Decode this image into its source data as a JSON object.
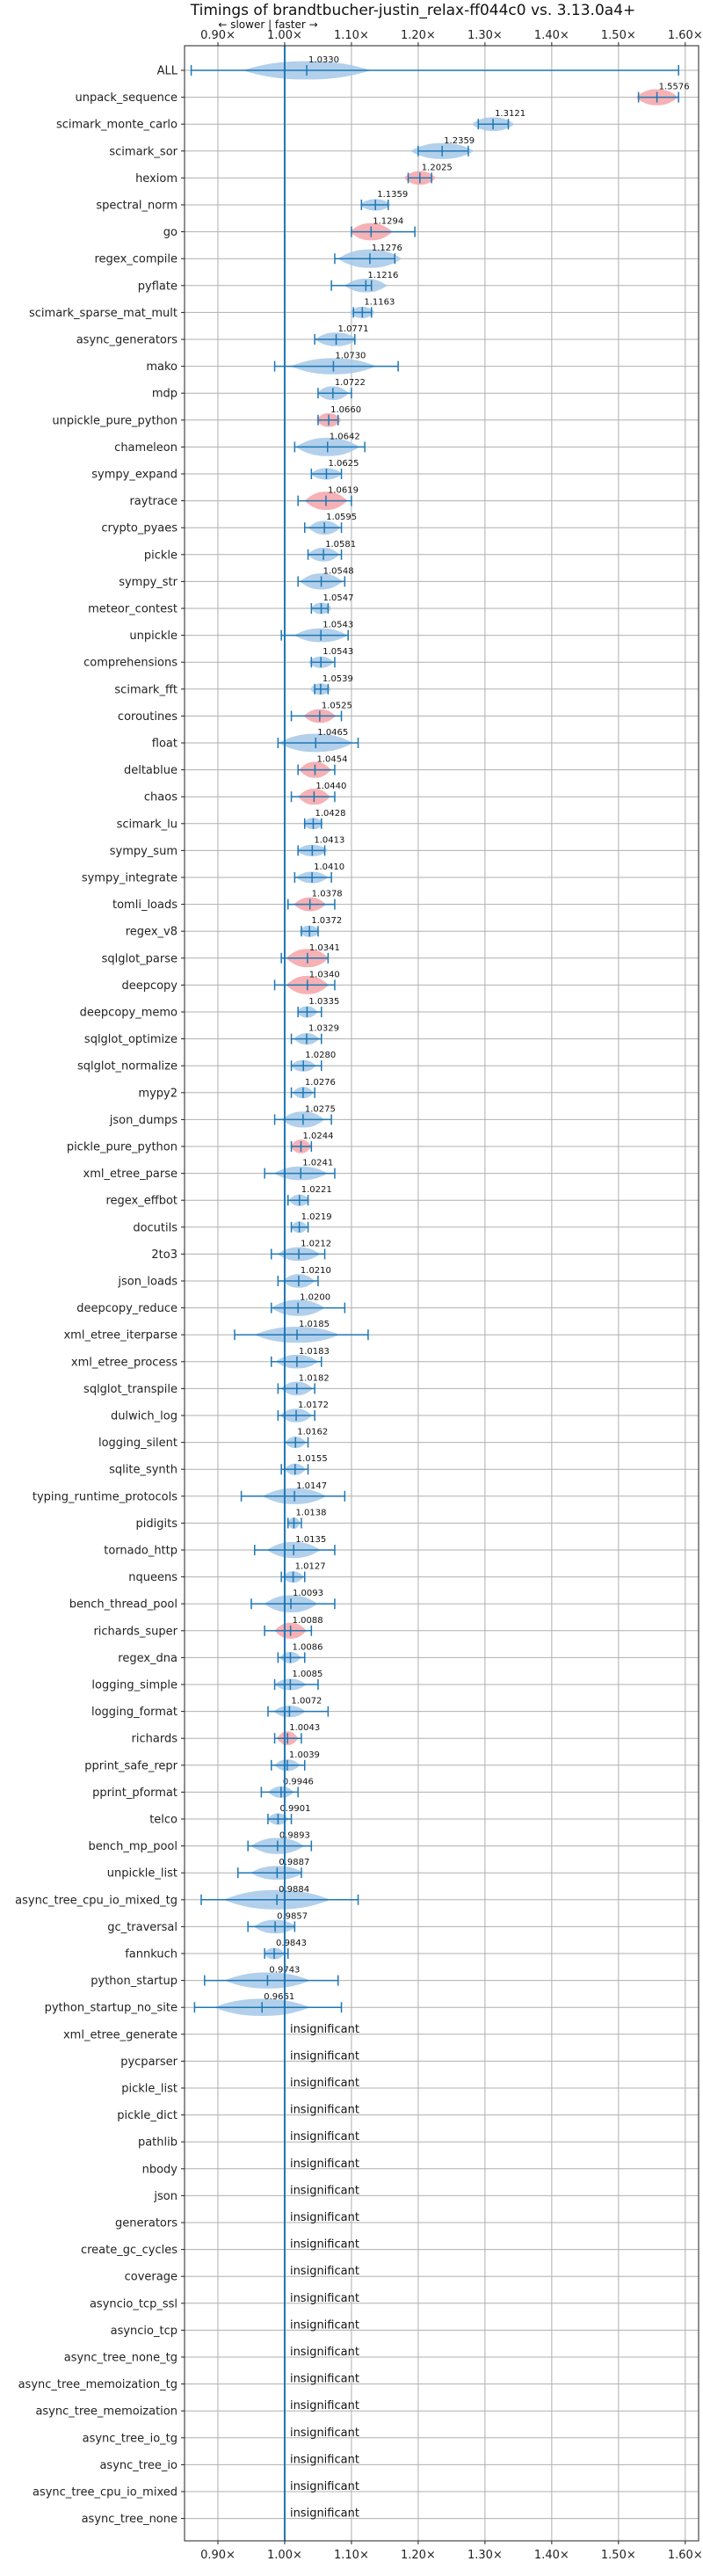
{
  "chart_data": {
    "type": "violin",
    "title": "Timings of brandtbucher-justin_relax-ff044c0 vs. 3.13.0a4+",
    "subtitle": "← slower | faster →",
    "xlim": [
      0.85,
      1.62
    ],
    "xticks": [
      "0.90×",
      "1.00×",
      "1.10×",
      "1.20×",
      "1.30×",
      "1.40×",
      "1.50×",
      "1.60×"
    ],
    "xtick_values": [
      0.9,
      1.0,
      1.1,
      1.2,
      1.3,
      1.4,
      1.5,
      1.6
    ],
    "grid": true,
    "baseline": 1.0,
    "colors": {
      "faster": "#a4c8e8",
      "slower": "#f4a3a8",
      "whisker": "#1f77b4"
    },
    "rows": [
      {
        "name": "ALL",
        "value": 1.033,
        "label": "1.0330",
        "lo": 0.86,
        "hi": 1.59,
        "spread": 0.06,
        "width": 0.8,
        "slower": false
      },
      {
        "name": "unpack_sequence",
        "value": 1.5576,
        "label": "1.5576",
        "lo": 1.53,
        "hi": 1.59,
        "spread": 0.02,
        "width": 0.7,
        "slower": true
      },
      {
        "name": "scimark_monte_carlo",
        "value": 1.3121,
        "label": "1.3121",
        "lo": 1.29,
        "hi": 1.335,
        "spread": 0.02,
        "width": 0.6,
        "slower": false
      },
      {
        "name": "scimark_sor",
        "value": 1.2359,
        "label": "1.2359",
        "lo": 1.2,
        "hi": 1.275,
        "spread": 0.03,
        "width": 0.7,
        "slower": false
      },
      {
        "name": "hexiom",
        "value": 1.2025,
        "label": "1.2025",
        "lo": 1.185,
        "hi": 1.22,
        "spread": 0.015,
        "width": 0.6,
        "slower": true
      },
      {
        "name": "spectral_norm",
        "value": 1.1359,
        "label": "1.1359",
        "lo": 1.115,
        "hi": 1.155,
        "spread": 0.015,
        "width": 0.5,
        "slower": false
      },
      {
        "name": "go",
        "value": 1.1294,
        "label": "1.1294",
        "lo": 1.1,
        "hi": 1.195,
        "spread": 0.02,
        "width": 0.75,
        "slower": true
      },
      {
        "name": "regex_compile",
        "value": 1.1276,
        "label": "1.1276",
        "lo": 1.075,
        "hi": 1.165,
        "spread": 0.03,
        "width": 0.8,
        "slower": false
      },
      {
        "name": "pyflate",
        "value": 1.1216,
        "label": "1.1216",
        "lo": 1.07,
        "hi": 1.13,
        "spread": 0.02,
        "width": 0.6,
        "slower": false
      },
      {
        "name": "scimark_sparse_mat_mult",
        "value": 1.1163,
        "label": "1.1163",
        "lo": 1.103,
        "hi": 1.13,
        "spread": 0.012,
        "width": 0.5,
        "slower": false
      },
      {
        "name": "async_generators",
        "value": 1.0771,
        "label": "1.0771",
        "lo": 1.045,
        "hi": 1.105,
        "spread": 0.02,
        "width": 0.6,
        "slower": false
      },
      {
        "name": "mako",
        "value": 1.073,
        "label": "1.0730",
        "lo": 0.985,
        "hi": 1.17,
        "spread": 0.04,
        "width": 0.7,
        "slower": false
      },
      {
        "name": "mdp",
        "value": 1.0722,
        "label": "1.0722",
        "lo": 1.05,
        "hi": 1.1,
        "spread": 0.015,
        "width": 0.6,
        "slower": false
      },
      {
        "name": "unpickle_pure_python",
        "value": 1.066,
        "label": "1.0660",
        "lo": 1.05,
        "hi": 1.08,
        "spread": 0.012,
        "width": 0.6,
        "slower": true
      },
      {
        "name": "chameleon",
        "value": 1.0642,
        "label": "1.0642",
        "lo": 1.015,
        "hi": 1.12,
        "spread": 0.03,
        "width": 0.8,
        "slower": false
      },
      {
        "name": "sympy_expand",
        "value": 1.0625,
        "label": "1.0625",
        "lo": 1.04,
        "hi": 1.085,
        "spread": 0.015,
        "width": 0.5,
        "slower": false
      },
      {
        "name": "raytrace",
        "value": 1.0619,
        "label": "1.0619",
        "lo": 1.02,
        "hi": 1.1,
        "spread": 0.02,
        "width": 0.8,
        "slower": true
      },
      {
        "name": "crypto_pyaes",
        "value": 1.0595,
        "label": "1.0595",
        "lo": 1.03,
        "hi": 1.085,
        "spread": 0.015,
        "width": 0.6,
        "slower": false
      },
      {
        "name": "pickle",
        "value": 1.0581,
        "label": "1.0581",
        "lo": 1.035,
        "hi": 1.085,
        "spread": 0.015,
        "width": 0.6,
        "slower": false
      },
      {
        "name": "sympy_str",
        "value": 1.0548,
        "label": "1.0548",
        "lo": 1.02,
        "hi": 1.09,
        "spread": 0.02,
        "width": 0.7,
        "slower": false
      },
      {
        "name": "meteor_contest",
        "value": 1.0547,
        "label": "1.0547",
        "lo": 1.04,
        "hi": 1.065,
        "spread": 0.01,
        "width": 0.5,
        "slower": false
      },
      {
        "name": "unpickle",
        "value": 1.0543,
        "label": "1.0543",
        "lo": 0.995,
        "hi": 1.095,
        "spread": 0.025,
        "width": 0.6,
        "slower": false
      },
      {
        "name": "comprehensions",
        "value": 1.0543,
        "label": "1.0543",
        "lo": 1.04,
        "hi": 1.075,
        "spread": 0.012,
        "width": 0.5,
        "slower": false
      },
      {
        "name": "scimark_fft",
        "value": 1.0539,
        "label": "1.0539",
        "lo": 1.045,
        "hi": 1.065,
        "spread": 0.01,
        "width": 0.5,
        "slower": false
      },
      {
        "name": "coroutines",
        "value": 1.0525,
        "label": "1.0525",
        "lo": 1.01,
        "hi": 1.085,
        "spread": 0.015,
        "width": 0.6,
        "slower": true
      },
      {
        "name": "float",
        "value": 1.0465,
        "label": "1.0465",
        "lo": 0.99,
        "hi": 1.11,
        "spread": 0.035,
        "width": 0.8,
        "slower": false
      },
      {
        "name": "deltablue",
        "value": 1.0454,
        "label": "1.0454",
        "lo": 1.02,
        "hi": 1.075,
        "spread": 0.015,
        "width": 0.7,
        "slower": true
      },
      {
        "name": "chaos",
        "value": 1.044,
        "label": "1.0440",
        "lo": 1.01,
        "hi": 1.075,
        "spread": 0.015,
        "width": 0.7,
        "slower": true
      },
      {
        "name": "scimark_lu",
        "value": 1.0428,
        "label": "1.0428",
        "lo": 1.03,
        "hi": 1.055,
        "spread": 0.01,
        "width": 0.5,
        "slower": false
      },
      {
        "name": "sympy_sum",
        "value": 1.0413,
        "label": "1.0413",
        "lo": 1.02,
        "hi": 1.06,
        "spread": 0.015,
        "width": 0.5,
        "slower": false
      },
      {
        "name": "sympy_integrate",
        "value": 1.041,
        "label": "1.0410",
        "lo": 1.015,
        "hi": 1.07,
        "spread": 0.015,
        "width": 0.5,
        "slower": false
      },
      {
        "name": "tomli_loads",
        "value": 1.0378,
        "label": "1.0378",
        "lo": 1.005,
        "hi": 1.075,
        "spread": 0.015,
        "width": 0.6,
        "slower": true
      },
      {
        "name": "regex_v8",
        "value": 1.0372,
        "label": "1.0372",
        "lo": 1.025,
        "hi": 1.05,
        "spread": 0.01,
        "width": 0.5,
        "slower": false
      },
      {
        "name": "sqlglot_parse",
        "value": 1.0341,
        "label": "1.0341",
        "lo": 0.995,
        "hi": 1.065,
        "spread": 0.02,
        "width": 0.8,
        "slower": true
      },
      {
        "name": "deepcopy",
        "value": 1.034,
        "label": "1.0340",
        "lo": 0.985,
        "hi": 1.075,
        "spread": 0.02,
        "width": 0.8,
        "slower": true
      },
      {
        "name": "deepcopy_memo",
        "value": 1.0335,
        "label": "1.0335",
        "lo": 1.02,
        "hi": 1.055,
        "spread": 0.01,
        "width": 0.5,
        "slower": false
      },
      {
        "name": "sqlglot_optimize",
        "value": 1.0329,
        "label": "1.0329",
        "lo": 1.01,
        "hi": 1.055,
        "spread": 0.012,
        "width": 0.5,
        "slower": false
      },
      {
        "name": "sqlglot_normalize",
        "value": 1.028,
        "label": "1.0280",
        "lo": 1.01,
        "hi": 1.055,
        "spread": 0.012,
        "width": 0.5,
        "slower": false
      },
      {
        "name": "mypy2",
        "value": 1.0276,
        "label": "1.0276",
        "lo": 1.01,
        "hi": 1.045,
        "spread": 0.01,
        "width": 0.5,
        "slower": false
      },
      {
        "name": "json_dumps",
        "value": 1.0275,
        "label": "1.0275",
        "lo": 0.985,
        "hi": 1.07,
        "spread": 0.02,
        "width": 0.7,
        "slower": false
      },
      {
        "name": "pickle_pure_python",
        "value": 1.0244,
        "label": "1.0244",
        "lo": 1.01,
        "hi": 1.04,
        "spread": 0.01,
        "width": 0.6,
        "slower": true
      },
      {
        "name": "xml_etree_parse",
        "value": 1.0241,
        "label": "1.0241",
        "lo": 0.97,
        "hi": 1.075,
        "spread": 0.025,
        "width": 0.6,
        "slower": false
      },
      {
        "name": "regex_effbot",
        "value": 1.0221,
        "label": "1.0221",
        "lo": 1.005,
        "hi": 1.035,
        "spread": 0.01,
        "width": 0.5,
        "slower": false
      },
      {
        "name": "docutils",
        "value": 1.0219,
        "label": "1.0219",
        "lo": 1.01,
        "hi": 1.035,
        "spread": 0.008,
        "width": 0.5,
        "slower": false
      },
      {
        "name": "2to3",
        "value": 1.0212,
        "label": "1.0212",
        "lo": 0.98,
        "hi": 1.06,
        "spread": 0.02,
        "width": 0.6,
        "slower": false
      },
      {
        "name": "json_loads",
        "value": 1.021,
        "label": "1.0210",
        "lo": 0.99,
        "hi": 1.05,
        "spread": 0.015,
        "width": 0.6,
        "slower": false
      },
      {
        "name": "deepcopy_reduce",
        "value": 1.02,
        "label": "1.0200",
        "lo": 0.98,
        "hi": 1.09,
        "spread": 0.025,
        "width": 0.7,
        "slower": false
      },
      {
        "name": "xml_etree_iterparse",
        "value": 1.0185,
        "label": "1.0185",
        "lo": 0.925,
        "hi": 1.125,
        "spread": 0.04,
        "width": 0.7,
        "slower": false
      },
      {
        "name": "xml_etree_process",
        "value": 1.0183,
        "label": "1.0183",
        "lo": 0.98,
        "hi": 1.055,
        "spread": 0.02,
        "width": 0.6,
        "slower": false
      },
      {
        "name": "sqlglot_transpile",
        "value": 1.0182,
        "label": "1.0182",
        "lo": 0.99,
        "hi": 1.045,
        "spread": 0.015,
        "width": 0.6,
        "slower": false
      },
      {
        "name": "dulwich_log",
        "value": 1.0172,
        "label": "1.0172",
        "lo": 0.99,
        "hi": 1.045,
        "spread": 0.015,
        "width": 0.6,
        "slower": false
      },
      {
        "name": "logging_silent",
        "value": 1.0162,
        "label": "1.0162",
        "lo": 1.0,
        "hi": 1.035,
        "spread": 0.01,
        "width": 0.5,
        "slower": false
      },
      {
        "name": "sqlite_synth",
        "value": 1.0155,
        "label": "1.0155",
        "lo": 0.995,
        "hi": 1.035,
        "spread": 0.01,
        "width": 0.5,
        "slower": false
      },
      {
        "name": "typing_runtime_protocols",
        "value": 1.0147,
        "label": "1.0147",
        "lo": 0.935,
        "hi": 1.09,
        "spread": 0.03,
        "width": 0.7,
        "slower": false
      },
      {
        "name": "pidigits",
        "value": 1.0138,
        "label": "1.0138",
        "lo": 1.005,
        "hi": 1.025,
        "spread": 0.006,
        "width": 0.5,
        "slower": false
      },
      {
        "name": "tornado_http",
        "value": 1.0135,
        "label": "1.0135",
        "lo": 0.955,
        "hi": 1.075,
        "spread": 0.025,
        "width": 0.7,
        "slower": false
      },
      {
        "name": "nqueens",
        "value": 1.0127,
        "label": "1.0127",
        "lo": 0.995,
        "hi": 1.03,
        "spread": 0.01,
        "width": 0.5,
        "slower": false
      },
      {
        "name": "bench_thread_pool",
        "value": 1.0093,
        "label": "1.0093",
        "lo": 0.95,
        "hi": 1.075,
        "spread": 0.025,
        "width": 0.75,
        "slower": false
      },
      {
        "name": "richards_super",
        "value": 1.0088,
        "label": "1.0088",
        "lo": 0.97,
        "hi": 1.04,
        "spread": 0.015,
        "width": 0.7,
        "slower": true
      },
      {
        "name": "regex_dna",
        "value": 1.0086,
        "label": "1.0086",
        "lo": 0.99,
        "hi": 1.03,
        "spread": 0.01,
        "width": 0.5,
        "slower": false
      },
      {
        "name": "logging_simple",
        "value": 1.0085,
        "label": "1.0085",
        "lo": 0.985,
        "hi": 1.05,
        "spread": 0.015,
        "width": 0.5,
        "slower": false
      },
      {
        "name": "logging_format",
        "value": 1.0072,
        "label": "1.0072",
        "lo": 0.975,
        "hi": 1.065,
        "spread": 0.015,
        "width": 0.5,
        "slower": false
      },
      {
        "name": "richards",
        "value": 1.0043,
        "label": "1.0043",
        "lo": 0.985,
        "hi": 1.025,
        "spread": 0.01,
        "width": 0.6,
        "slower": true
      },
      {
        "name": "pprint_safe_repr",
        "value": 1.0039,
        "label": "1.0039",
        "lo": 0.98,
        "hi": 1.03,
        "spread": 0.012,
        "width": 0.5,
        "slower": false
      },
      {
        "name": "pprint_pformat",
        "value": 0.9946,
        "label": "0.9946",
        "lo": 0.965,
        "hi": 1.02,
        "spread": 0.012,
        "width": 0.5,
        "slower": false
      },
      {
        "name": "telco",
        "value": 0.9901,
        "label": "0.9901",
        "lo": 0.975,
        "hi": 1.01,
        "spread": 0.01,
        "width": 0.5,
        "slower": false
      },
      {
        "name": "bench_mp_pool",
        "value": 0.9893,
        "label": "0.9893",
        "lo": 0.945,
        "hi": 1.04,
        "spread": 0.025,
        "width": 0.7,
        "slower": false
      },
      {
        "name": "unpickle_list",
        "value": 0.9887,
        "label": "0.9887",
        "lo": 0.93,
        "hi": 1.025,
        "spread": 0.025,
        "width": 0.6,
        "slower": false
      },
      {
        "name": "async_tree_cpu_io_mixed_tg",
        "value": 0.9884,
        "label": "0.9884",
        "lo": 0.875,
        "hi": 1.11,
        "spread": 0.05,
        "width": 0.85,
        "slower": false
      },
      {
        "name": "gc_traversal",
        "value": 0.9857,
        "label": "0.9857",
        "lo": 0.945,
        "hi": 1.015,
        "spread": 0.02,
        "width": 0.6,
        "slower": false
      },
      {
        "name": "fannkuch",
        "value": 0.9843,
        "label": "0.9843",
        "lo": 0.97,
        "hi": 1.005,
        "spread": 0.01,
        "width": 0.5,
        "slower": false
      },
      {
        "name": "python_startup",
        "value": 0.9743,
        "label": "0.9743",
        "lo": 0.88,
        "hi": 1.08,
        "spread": 0.04,
        "width": 0.7,
        "slower": false
      },
      {
        "name": "python_startup_no_site",
        "value": 0.9661,
        "label": "0.9661",
        "lo": 0.865,
        "hi": 1.085,
        "spread": 0.045,
        "width": 0.75,
        "slower": false
      }
    ],
    "insignificant_label": "insignificant",
    "insignificant_rows": [
      "xml_etree_generate",
      "pycparser",
      "pickle_list",
      "pickle_dict",
      "pathlib",
      "nbody",
      "json",
      "generators",
      "create_gc_cycles",
      "coverage",
      "asyncio_tcp_ssl",
      "asyncio_tcp",
      "async_tree_none_tg",
      "async_tree_memoization_tg",
      "async_tree_memoization",
      "async_tree_io_tg",
      "async_tree_io",
      "async_tree_cpu_io_mixed",
      "async_tree_none"
    ]
  }
}
